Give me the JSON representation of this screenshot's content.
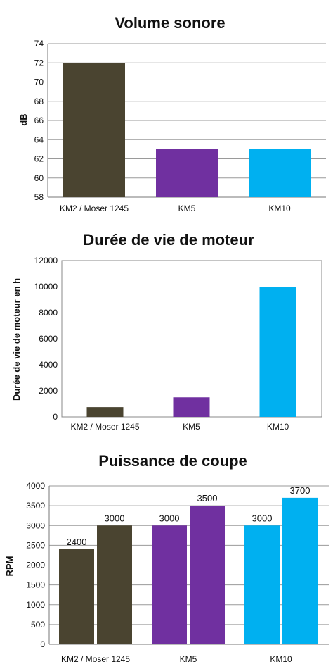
{
  "chart_data": [
    {
      "type": "bar",
      "title": "Volume sonore",
      "ylabel": "dB",
      "xlabel": "",
      "categories": [
        "KM2 / Moser 1245",
        "KM5",
        "KM10"
      ],
      "values": [
        72,
        63,
        63
      ],
      "colors": [
        "#4a4430",
        "#7030a0",
        "#00b0f0"
      ],
      "ylim": [
        58,
        74
      ],
      "yticks": [
        58,
        60,
        62,
        64,
        66,
        68,
        70,
        72,
        74
      ],
      "grid": true
    },
    {
      "type": "bar",
      "title": "Durée de vie de moteur",
      "ylabel": "Durée de vie de moteur en h",
      "xlabel": "",
      "categories": [
        "KM2 / Moser 1245",
        "KM5",
        "KM10"
      ],
      "values": [
        750,
        1500,
        10000
      ],
      "colors": [
        "#4a4430",
        "#7030a0",
        "#00b0f0"
      ],
      "ylim": [
        0,
        12000
      ],
      "yticks": [
        0,
        2000,
        4000,
        6000,
        8000,
        10000,
        12000
      ],
      "grid": false
    },
    {
      "type": "bar",
      "title": "Puissance de coupe",
      "ylabel": "RPM",
      "xlabel": "",
      "categories": [
        "KM2 / Moser 1245",
        "KM5",
        "KM10"
      ],
      "series": [
        {
          "values": [
            2400,
            3000,
            3000
          ]
        },
        {
          "values": [
            3000,
            3500,
            3700
          ]
        }
      ],
      "data_labels": [
        [
          "2400",
          "3000"
        ],
        [
          "3000",
          "3500"
        ],
        [
          "3000",
          "3700"
        ]
      ],
      "colors": [
        "#4a4430",
        "#7030a0",
        "#00b0f0"
      ],
      "ylim": [
        0,
        4000
      ],
      "yticks": [
        0,
        500,
        1000,
        1500,
        2000,
        2500,
        3000,
        3500,
        4000
      ],
      "grid": true
    }
  ]
}
